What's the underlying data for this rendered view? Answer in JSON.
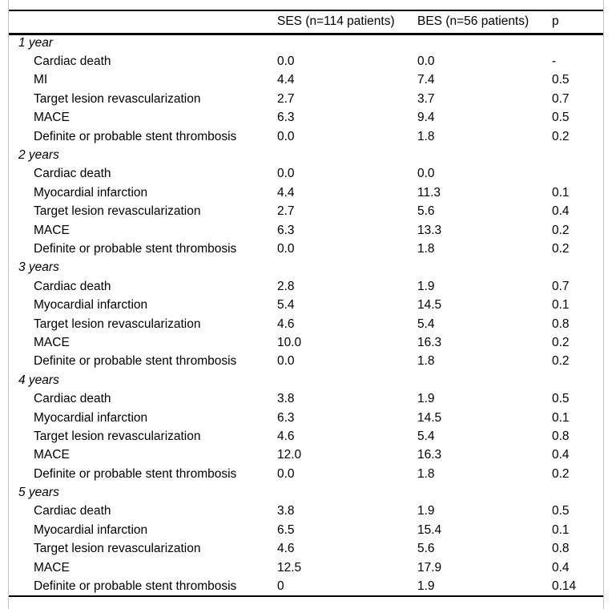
{
  "colors": {
    "background": "#ffffff",
    "text": "#000000",
    "rules": "#000000",
    "frame_border": "#c5c5c5"
  },
  "table": {
    "header": {
      "label": "",
      "ses": "SES (n=114 patients)",
      "bes": "BES (n=56 patients)",
      "p": "p"
    },
    "sections": [
      {
        "label": "1 year",
        "rows": [
          {
            "label": "Cardiac death",
            "ses": "0.0",
            "bes": "0.0",
            "p": "-"
          },
          {
            "label": "MI",
            "ses": "4.4",
            "bes": "7.4",
            "p": "0.5"
          },
          {
            "label": "Target lesion revascularization",
            "ses": "2.7",
            "bes": "3.7",
            "p": "0.7"
          },
          {
            "label": "MACE",
            "ses": "6.3",
            "bes": "9.4",
            "p": "0.5"
          },
          {
            "label": "Definite or probable stent thrombosis",
            "ses": "0.0",
            "bes": "1.8",
            "p": "0.2"
          }
        ]
      },
      {
        "label": "2 years",
        "rows": [
          {
            "label": "Cardiac death",
            "ses": "0.0",
            "bes": "0.0",
            "p": ""
          },
          {
            "label": "Myocardial infarction",
            "ses": "4.4",
            "bes": "11.3",
            "p": "0.1"
          },
          {
            "label": "Target lesion revascularization",
            "ses": "2.7",
            "bes": "5.6",
            "p": "0.4"
          },
          {
            "label": "MACE",
            "ses": "6.3",
            "bes": "13.3",
            "p": "0.2"
          },
          {
            "label": "Definite or probable stent thrombosis",
            "ses": "0.0",
            "bes": "1.8",
            "p": "0.2"
          }
        ]
      },
      {
        "label": "3 years",
        "rows": [
          {
            "label": "Cardiac death",
            "ses": "2.8",
            "bes": "1.9",
            "p": "0.7"
          },
          {
            "label": "Myocardial infarction",
            "ses": "5.4",
            "bes": "14.5",
            "p": "0.1"
          },
          {
            "label": "Target lesion revascularization",
            "ses": "4.6",
            "bes": "5.4",
            "p": "0.8"
          },
          {
            "label": "MACE",
            "ses": "10.0",
            "bes": "16.3",
            "p": "0.2"
          },
          {
            "label": "Definite or probable stent thrombosis",
            "ses": "0.0",
            "bes": "1.8",
            "p": "0.2"
          }
        ]
      },
      {
        "label": "4 years",
        "rows": [
          {
            "label": "Cardiac death",
            "ses": "3.8",
            "bes": "1.9",
            "p": "0.5"
          },
          {
            "label": "Myocardial infarction",
            "ses": "6.3",
            "bes": "14.5",
            "p": "0.1"
          },
          {
            "label": "Target lesion revascularization",
            "ses": "4.6",
            "bes": "5.4",
            "p": "0.8"
          },
          {
            "label": "MACE",
            "ses": "12.0",
            "bes": "16.3",
            "p": "0.4"
          },
          {
            "label": "Definite or probable stent thrombosis",
            "ses": "0.0",
            "bes": "1.8",
            "p": "0.2"
          }
        ]
      },
      {
        "label": "5 years",
        "rows": [
          {
            "label": "Cardiac death",
            "ses": "3.8",
            "bes": "1.9",
            "p": "0.5"
          },
          {
            "label": "Myocardial infarction",
            "ses": "6.5",
            "bes": "15.4",
            "p": "0.1"
          },
          {
            "label": "Target lesion revascularization",
            "ses": "4.6",
            "bes": "5.6",
            "p": "0.8"
          },
          {
            "label": "MACE",
            "ses": "12.5",
            "bes": "17.9",
            "p": "0.4"
          },
          {
            "label": "Definite or probable stent thrombosis",
            "ses": "0",
            "bes": "1.9",
            "p": "0.14"
          }
        ]
      }
    ]
  }
}
